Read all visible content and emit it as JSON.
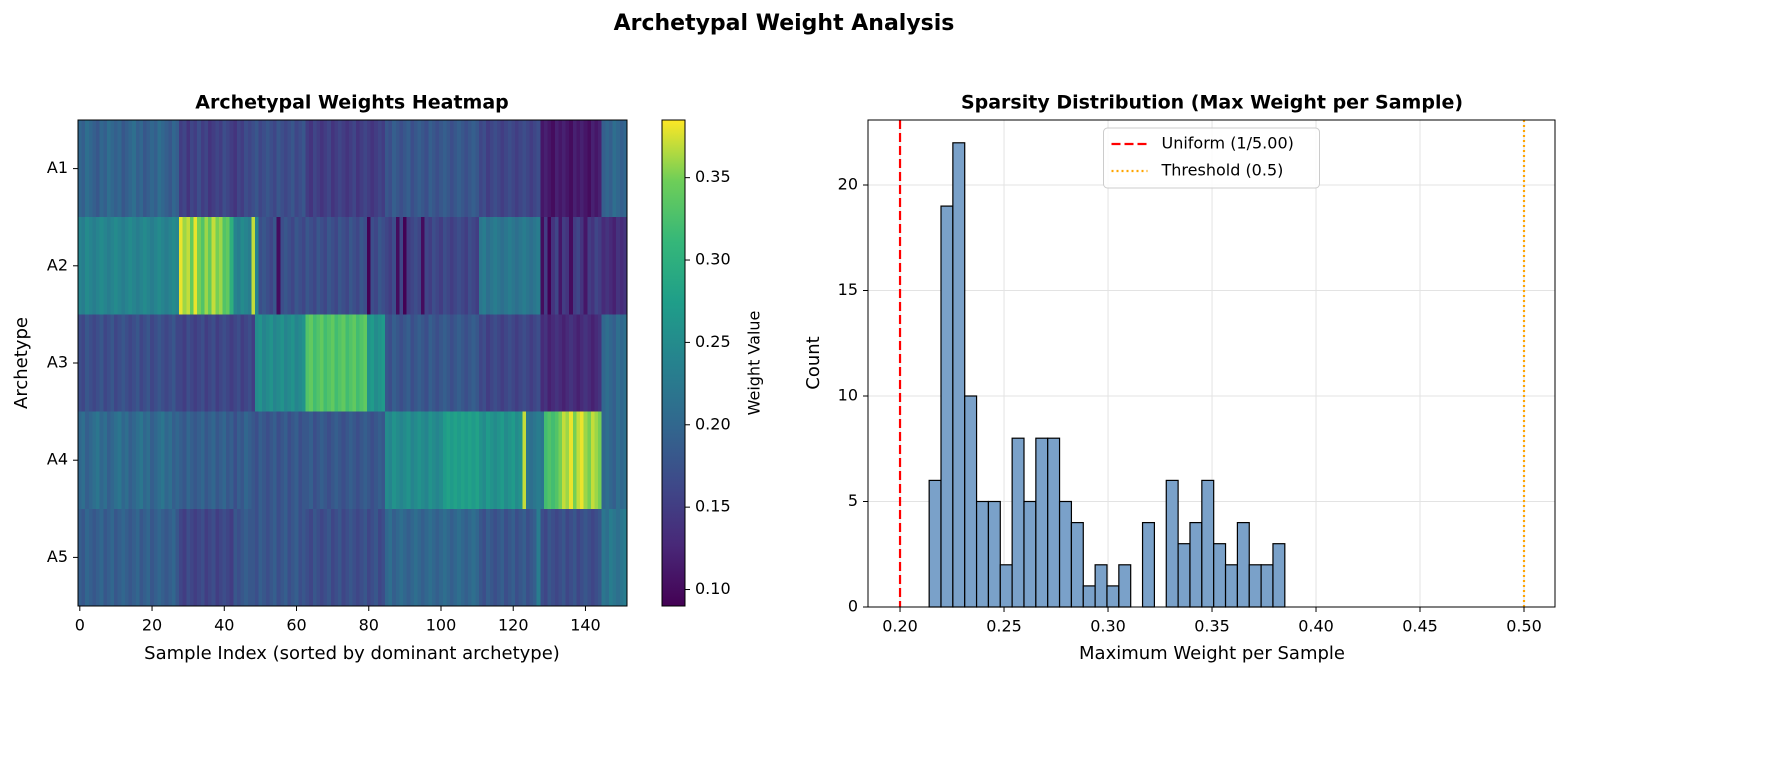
{
  "title": "Archetypal Weight Analysis",
  "chart_data": [
    {
      "type": "heatmap",
      "title": "Archetypal Weights Heatmap",
      "x_label": "Sample Index (sorted by dominant archetype)",
      "y_label": "Archetype",
      "y_categories": [
        "A1",
        "A2",
        "A3",
        "A4",
        "A5"
      ],
      "xlim": [
        -0.5,
        151.5
      ],
      "xticks": [
        0,
        20,
        40,
        60,
        80,
        100,
        120,
        140
      ],
      "colormap": "viridis",
      "clim": [
        0.09,
        0.385
      ],
      "cticks": [
        {
          "value": 0.1,
          "label": "0.10"
        },
        {
          "value": 0.15,
          "label": "0.15"
        },
        {
          "value": 0.2,
          "label": "0.20"
        },
        {
          "value": 0.25,
          "label": "0.25"
        },
        {
          "value": 0.3,
          "label": "0.30"
        },
        {
          "value": 0.35,
          "label": "0.35"
        }
      ],
      "colorbar_label": "Weight Value",
      "values": [
        [
          0.2,
          0.19,
          0.21,
          0.2,
          0.19,
          0.18,
          0.2,
          0.19,
          0.21,
          0.2,
          0.19,
          0.2,
          0.18,
          0.19,
          0.2,
          0.21,
          0.19,
          0.2,
          0.18,
          0.19,
          0.2,
          0.19,
          0.21,
          0.2,
          0.19,
          0.18,
          0.2,
          0.19,
          0.15,
          0.16,
          0.14,
          0.16,
          0.15,
          0.17,
          0.15,
          0.16,
          0.14,
          0.15,
          0.16,
          0.15,
          0.17,
          0.16,
          0.15,
          0.14,
          0.16,
          0.15,
          0.17,
          0.16,
          0.17,
          0.18,
          0.16,
          0.17,
          0.18,
          0.17,
          0.16,
          0.18,
          0.17,
          0.16,
          0.17,
          0.18,
          0.16,
          0.17,
          0.18,
          0.15,
          0.14,
          0.16,
          0.15,
          0.14,
          0.15,
          0.16,
          0.14,
          0.15,
          0.16,
          0.15,
          0.14,
          0.15,
          0.16,
          0.14,
          0.15,
          0.16,
          0.15,
          0.14,
          0.15,
          0.16,
          0.15,
          0.18,
          0.17,
          0.19,
          0.18,
          0.17,
          0.18,
          0.19,
          0.17,
          0.18,
          0.19,
          0.18,
          0.17,
          0.19,
          0.18,
          0.17,
          0.18,
          0.19,
          0.18,
          0.17,
          0.18,
          0.19,
          0.18,
          0.17,
          0.18,
          0.19,
          0.18,
          0.16,
          0.17,
          0.15,
          0.16,
          0.17,
          0.16,
          0.15,
          0.16,
          0.17,
          0.16,
          0.15,
          0.16,
          0.17,
          0.16,
          0.15,
          0.16,
          0.17,
          0.11,
          0.12,
          0.11,
          0.1,
          0.12,
          0.11,
          0.12,
          0.11,
          0.1,
          0.12,
          0.11,
          0.12,
          0.11,
          0.1,
          0.12,
          0.11,
          0.12,
          0.19,
          0.2,
          0.19,
          0.21,
          0.2,
          0.19,
          0.2
        ],
        [
          0.24,
          0.23,
          0.25,
          0.24,
          0.23,
          0.24,
          0.25,
          0.24,
          0.23,
          0.24,
          0.25,
          0.24,
          0.23,
          0.24,
          0.25,
          0.24,
          0.23,
          0.24,
          0.25,
          0.24,
          0.23,
          0.24,
          0.25,
          0.24,
          0.23,
          0.24,
          0.25,
          0.24,
          0.38,
          0.36,
          0.37,
          0.34,
          0.38,
          0.35,
          0.33,
          0.36,
          0.34,
          0.37,
          0.35,
          0.36,
          0.33,
          0.34,
          0.3,
          0.24,
          0.23,
          0.25,
          0.24,
          0.23,
          0.37,
          0.24,
          0.17,
          0.18,
          0.17,
          0.16,
          0.18,
          0.1,
          0.17,
          0.18,
          0.17,
          0.16,
          0.18,
          0.17,
          0.16,
          0.18,
          0.17,
          0.16,
          0.18,
          0.17,
          0.16,
          0.18,
          0.17,
          0.16,
          0.18,
          0.17,
          0.16,
          0.18,
          0.17,
          0.16,
          0.18,
          0.17,
          0.09,
          0.17,
          0.16,
          0.18,
          0.17,
          0.16,
          0.15,
          0.17,
          0.1,
          0.16,
          0.09,
          0.15,
          0.16,
          0.17,
          0.16,
          0.1,
          0.16,
          0.15,
          0.17,
          0.16,
          0.15,
          0.17,
          0.16,
          0.15,
          0.16,
          0.17,
          0.16,
          0.15,
          0.17,
          0.16,
          0.15,
          0.22,
          0.23,
          0.21,
          0.22,
          0.23,
          0.22,
          0.21,
          0.22,
          0.23,
          0.22,
          0.21,
          0.22,
          0.23,
          0.22,
          0.21,
          0.22,
          0.23,
          0.1,
          0.15,
          0.09,
          0.14,
          0.16,
          0.11,
          0.15,
          0.14,
          0.1,
          0.15,
          0.16,
          0.14,
          0.11,
          0.15,
          0.14,
          0.16,
          0.15,
          0.13,
          0.14,
          0.13,
          0.12,
          0.14,
          0.13,
          0.14
        ],
        [
          0.17,
          0.16,
          0.18,
          0.17,
          0.16,
          0.17,
          0.18,
          0.16,
          0.17,
          0.18,
          0.16,
          0.17,
          0.18,
          0.17,
          0.16,
          0.17,
          0.18,
          0.16,
          0.17,
          0.18,
          0.16,
          0.17,
          0.18,
          0.17,
          0.16,
          0.17,
          0.18,
          0.16,
          0.16,
          0.15,
          0.17,
          0.16,
          0.15,
          0.16,
          0.17,
          0.15,
          0.16,
          0.17,
          0.15,
          0.16,
          0.17,
          0.16,
          0.15,
          0.16,
          0.17,
          0.15,
          0.16,
          0.17,
          0.15,
          0.25,
          0.26,
          0.24,
          0.25,
          0.26,
          0.24,
          0.25,
          0.26,
          0.24,
          0.25,
          0.26,
          0.24,
          0.25,
          0.26,
          0.33,
          0.34,
          0.32,
          0.33,
          0.34,
          0.32,
          0.33,
          0.34,
          0.32,
          0.33,
          0.34,
          0.32,
          0.33,
          0.34,
          0.32,
          0.33,
          0.34,
          0.26,
          0.27,
          0.25,
          0.26,
          0.27,
          0.18,
          0.17,
          0.19,
          0.18,
          0.17,
          0.18,
          0.19,
          0.17,
          0.18,
          0.19,
          0.18,
          0.17,
          0.19,
          0.18,
          0.17,
          0.18,
          0.19,
          0.18,
          0.17,
          0.18,
          0.19,
          0.18,
          0.17,
          0.18,
          0.19,
          0.18,
          0.16,
          0.17,
          0.15,
          0.16,
          0.17,
          0.16,
          0.15,
          0.16,
          0.17,
          0.16,
          0.15,
          0.16,
          0.17,
          0.16,
          0.15,
          0.16,
          0.17,
          0.13,
          0.14,
          0.12,
          0.13,
          0.14,
          0.13,
          0.12,
          0.13,
          0.14,
          0.13,
          0.12,
          0.13,
          0.14,
          0.13,
          0.12,
          0.13,
          0.14,
          0.2,
          0.21,
          0.2,
          0.19,
          0.21,
          0.2,
          0.21
        ],
        [
          0.2,
          0.21,
          0.19,
          0.2,
          0.21,
          0.22,
          0.2,
          0.21,
          0.19,
          0.2,
          0.21,
          0.22,
          0.2,
          0.21,
          0.19,
          0.2,
          0.21,
          0.22,
          0.2,
          0.21,
          0.19,
          0.2,
          0.21,
          0.22,
          0.2,
          0.21,
          0.19,
          0.2,
          0.19,
          0.18,
          0.2,
          0.19,
          0.18,
          0.19,
          0.2,
          0.18,
          0.19,
          0.2,
          0.18,
          0.19,
          0.2,
          0.18,
          0.19,
          0.17,
          0.19,
          0.18,
          0.2,
          0.19,
          0.18,
          0.17,
          0.19,
          0.18,
          0.17,
          0.18,
          0.19,
          0.17,
          0.18,
          0.19,
          0.17,
          0.18,
          0.19,
          0.17,
          0.18,
          0.18,
          0.19,
          0.17,
          0.18,
          0.19,
          0.18,
          0.17,
          0.18,
          0.19,
          0.18,
          0.17,
          0.18,
          0.19,
          0.18,
          0.17,
          0.18,
          0.19,
          0.18,
          0.17,
          0.18,
          0.19,
          0.18,
          0.25,
          0.24,
          0.26,
          0.25,
          0.24,
          0.25,
          0.26,
          0.24,
          0.25,
          0.26,
          0.25,
          0.24,
          0.26,
          0.25,
          0.24,
          0.25,
          0.27,
          0.28,
          0.27,
          0.28,
          0.27,
          0.28,
          0.27,
          0.28,
          0.27,
          0.28,
          0.26,
          0.25,
          0.27,
          0.26,
          0.25,
          0.26,
          0.27,
          0.25,
          0.26,
          0.27,
          0.25,
          0.26,
          0.37,
          0.22,
          0.21,
          0.22,
          0.23,
          0.22,
          0.32,
          0.33,
          0.32,
          0.33,
          0.35,
          0.37,
          0.36,
          0.38,
          0.35,
          0.37,
          0.38,
          0.36,
          0.35,
          0.37,
          0.36,
          0.35,
          0.2,
          0.21,
          0.2,
          0.19,
          0.21,
          0.2,
          0.21
        ],
        [
          0.19,
          0.18,
          0.2,
          0.19,
          0.18,
          0.19,
          0.2,
          0.18,
          0.19,
          0.2,
          0.18,
          0.19,
          0.2,
          0.19,
          0.18,
          0.19,
          0.2,
          0.18,
          0.19,
          0.2,
          0.18,
          0.19,
          0.2,
          0.19,
          0.18,
          0.19,
          0.2,
          0.18,
          0.16,
          0.15,
          0.17,
          0.16,
          0.15,
          0.16,
          0.17,
          0.15,
          0.16,
          0.17,
          0.15,
          0.16,
          0.17,
          0.16,
          0.15,
          0.18,
          0.17,
          0.18,
          0.19,
          0.18,
          0.18,
          0.17,
          0.19,
          0.18,
          0.17,
          0.18,
          0.19,
          0.17,
          0.18,
          0.19,
          0.17,
          0.18,
          0.19,
          0.17,
          0.18,
          0.17,
          0.16,
          0.18,
          0.17,
          0.16,
          0.17,
          0.18,
          0.16,
          0.17,
          0.18,
          0.16,
          0.17,
          0.18,
          0.17,
          0.16,
          0.17,
          0.18,
          0.16,
          0.17,
          0.18,
          0.16,
          0.17,
          0.2,
          0.21,
          0.19,
          0.2,
          0.21,
          0.2,
          0.19,
          0.2,
          0.21,
          0.2,
          0.19,
          0.2,
          0.21,
          0.2,
          0.19,
          0.2,
          0.21,
          0.2,
          0.19,
          0.2,
          0.21,
          0.2,
          0.19,
          0.2,
          0.21,
          0.2,
          0.18,
          0.17,
          0.19,
          0.18,
          0.17,
          0.18,
          0.19,
          0.17,
          0.18,
          0.19,
          0.17,
          0.18,
          0.19,
          0.17,
          0.18,
          0.19,
          0.23,
          0.17,
          0.16,
          0.18,
          0.17,
          0.16,
          0.17,
          0.18,
          0.16,
          0.17,
          0.18,
          0.16,
          0.17,
          0.18,
          0.17,
          0.16,
          0.17,
          0.18,
          0.22,
          0.21,
          0.23,
          0.22,
          0.21,
          0.22,
          0.23
        ]
      ]
    },
    {
      "type": "histogram",
      "title": "Sparsity Distribution (Max Weight per Sample)",
      "x_label": "Maximum Weight per Sample",
      "y_label": "Count",
      "bins": [
        0.214,
        0.2197,
        0.2254,
        0.2311,
        0.2368,
        0.2425,
        0.2482,
        0.2539,
        0.2596,
        0.2653,
        0.271,
        0.2767,
        0.2824,
        0.2881,
        0.2938,
        0.2995,
        0.3052,
        0.3109,
        0.3166,
        0.3223,
        0.328,
        0.3337,
        0.3394,
        0.3451,
        0.3508,
        0.3565,
        0.3622,
        0.3679,
        0.3736,
        0.3793,
        0.385
      ],
      "values": [
        6,
        19,
        22,
        10,
        5,
        5,
        2,
        8,
        5,
        8,
        8,
        5,
        4,
        1,
        2,
        1,
        2,
        0,
        4,
        0,
        6,
        3,
        4,
        6,
        3,
        2,
        4,
        2,
        2,
        3
      ],
      "color": "#7aa1c9",
      "edgecolor": "#000000",
      "xlim": [
        0.1846,
        0.5149
      ],
      "xticks": [
        {
          "value": 0.2,
          "label": "0.20"
        },
        {
          "value": 0.25,
          "label": "0.25"
        },
        {
          "value": 0.3,
          "label": "0.30"
        },
        {
          "value": 0.35,
          "label": "0.35"
        },
        {
          "value": 0.4,
          "label": "0.40"
        },
        {
          "value": 0.45,
          "label": "0.45"
        },
        {
          "value": 0.5,
          "label": "0.50"
        }
      ],
      "ylim": [
        0,
        23.08
      ],
      "yticks": [
        0,
        5,
        10,
        15,
        20
      ],
      "grid": true,
      "lines": [
        {
          "name": "Uniform (1/5.00)",
          "value": 0.2,
          "color": "#ff0000",
          "style": "dashed"
        },
        {
          "name": "Threshold (0.5)",
          "value": 0.5,
          "color": "#ffa500",
          "style": "dotted"
        }
      ],
      "legend": "upper center"
    }
  ]
}
